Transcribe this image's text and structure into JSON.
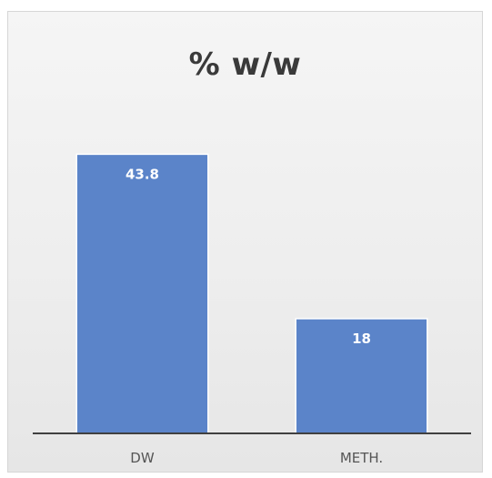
{
  "chart_data": {
    "type": "bar",
    "title": "% w/w",
    "categories": [
      "DW",
      "METH."
    ],
    "values": [
      43.8,
      18
    ],
    "data_labels": [
      "43.8",
      "18"
    ],
    "xlabel": "",
    "ylabel": "",
    "ylim": [
      0,
      50
    ],
    "grid": false,
    "legend": "none",
    "colors": {
      "bar": "#5B84C9",
      "axis": "#404040",
      "background": "#EEEEEE",
      "data_label": "#FFFFFF"
    }
  }
}
